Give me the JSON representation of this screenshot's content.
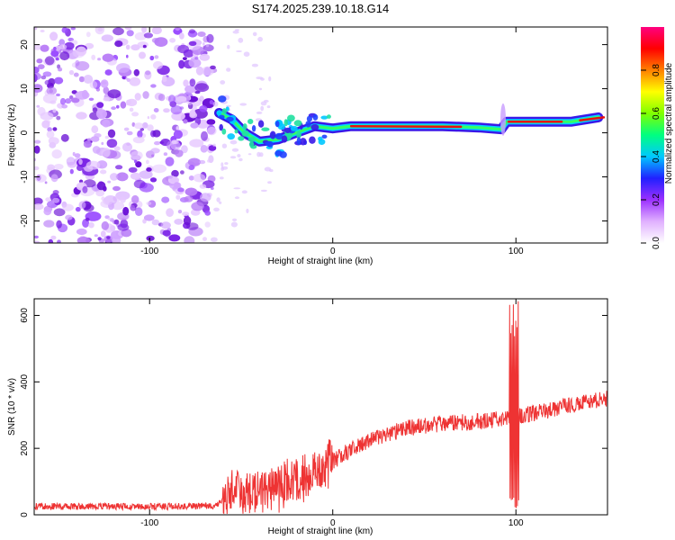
{
  "title": "S174.2025.239.10.18.G14",
  "chart_data": [
    {
      "type": "heatmap",
      "name": "spectrogram",
      "xlabel": "Height of straight line (km)",
      "ylabel": "Frequency (Hz)",
      "xlim": [
        -163,
        150
      ],
      "ylim": [
        -25,
        24
      ],
      "xticks": [
        -100,
        0,
        100
      ],
      "yticks": [
        -20,
        -10,
        0,
        10,
        20
      ],
      "colorbar": {
        "label": "Normalized spectral amplitude",
        "range": [
          0,
          1
        ],
        "ticks": [
          "0.0",
          "0.2",
          "0.4",
          "0.6",
          "0.8"
        ],
        "colors": [
          "#ffffff",
          "#e0b0ff",
          "#9b30ff",
          "#2020ff",
          "#00c8ff",
          "#00ff80",
          "#80ff00",
          "#ffff00",
          "#ff8000",
          "#ff0000",
          "#ff0080"
        ]
      },
      "noise_region_x": [
        -163,
        -65
      ],
      "signal_track": [
        {
          "x": -62,
          "f": 4.5
        },
        {
          "x": -55,
          "f": 3
        },
        {
          "x": -48,
          "f": 0
        },
        {
          "x": -40,
          "f": -2
        },
        {
          "x": -30,
          "f": -1.5
        },
        {
          "x": -20,
          "f": 0
        },
        {
          "x": -10,
          "f": 1.5
        },
        {
          "x": 0,
          "f": 1
        },
        {
          "x": 10,
          "f": 1.5
        },
        {
          "x": 30,
          "f": 1.5
        },
        {
          "x": 60,
          "f": 1.5
        },
        {
          "x": 80,
          "f": 1.2
        },
        {
          "x": 92,
          "f": 0.8
        },
        {
          "x": 95,
          "f": 2.5
        },
        {
          "x": 110,
          "f": 2.5
        },
        {
          "x": 130,
          "f": 2.5
        },
        {
          "x": 145,
          "f": 3.5
        }
      ]
    },
    {
      "type": "line",
      "name": "snr",
      "xlabel": "Height of straight line (km)",
      "ylabel": "SNR (10 * v/v)",
      "xlim": [
        -163,
        150
      ],
      "ylim": [
        0,
        650
      ],
      "xticks": [
        -100,
        0,
        100
      ],
      "yticks": [
        0,
        200,
        400,
        600
      ],
      "color": "#ee3333",
      "trend": [
        {
          "x": -163,
          "y": 25
        },
        {
          "x": -80,
          "y": 25
        },
        {
          "x": -64,
          "y": 28
        },
        {
          "x": -55,
          "y": 60
        },
        {
          "x": -45,
          "y": 70
        },
        {
          "x": -35,
          "y": 80
        },
        {
          "x": -25,
          "y": 95
        },
        {
          "x": -15,
          "y": 115
        },
        {
          "x": -5,
          "y": 140
        },
        {
          "x": 5,
          "y": 180
        },
        {
          "x": 15,
          "y": 210
        },
        {
          "x": 25,
          "y": 235
        },
        {
          "x": 40,
          "y": 260
        },
        {
          "x": 60,
          "y": 275
        },
        {
          "x": 80,
          "y": 280
        },
        {
          "x": 95,
          "y": 290
        },
        {
          "x": 110,
          "y": 305
        },
        {
          "x": 130,
          "y": 330
        },
        {
          "x": 150,
          "y": 350
        }
      ],
      "spike": {
        "x": 99,
        "peak": 650,
        "trough": 20
      }
    }
  ]
}
